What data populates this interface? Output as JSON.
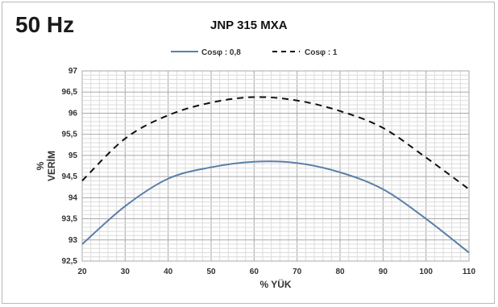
{
  "header": {
    "frequency": "50 Hz",
    "model": "JNP 315 MXA"
  },
  "chart_data": {
    "type": "line",
    "title": "JNP 315 MXA",
    "xlabel": "% YÜK",
    "ylabel_line1": "%",
    "ylabel_line2": "VERİM",
    "xlim": [
      20,
      110
    ],
    "ylim": [
      92.5,
      97
    ],
    "x_ticks": [
      "20",
      "30",
      "40",
      "50",
      "60",
      "70",
      "80",
      "90",
      "100",
      "110"
    ],
    "y_ticks": [
      "92,5",
      "93",
      "93,5",
      "94",
      "94,5",
      "95",
      "95,5",
      "96",
      "96,5",
      "97"
    ],
    "grid": true,
    "legend_position": "top",
    "x": [
      20,
      30,
      40,
      50,
      60,
      70,
      80,
      90,
      100,
      110
    ],
    "series": [
      {
        "name": "Cosφ : 0,8",
        "style": "solid",
        "color": "#5b7fa8",
        "values": [
          92.9,
          93.8,
          94.45,
          94.72,
          94.85,
          94.82,
          94.6,
          94.2,
          93.5,
          92.7
        ]
      },
      {
        "name": "Cosφ : 1",
        "style": "dashed",
        "color": "#111111",
        "values": [
          94.4,
          95.4,
          95.95,
          96.25,
          96.38,
          96.3,
          96.05,
          95.65,
          94.95,
          94.2
        ]
      }
    ]
  }
}
